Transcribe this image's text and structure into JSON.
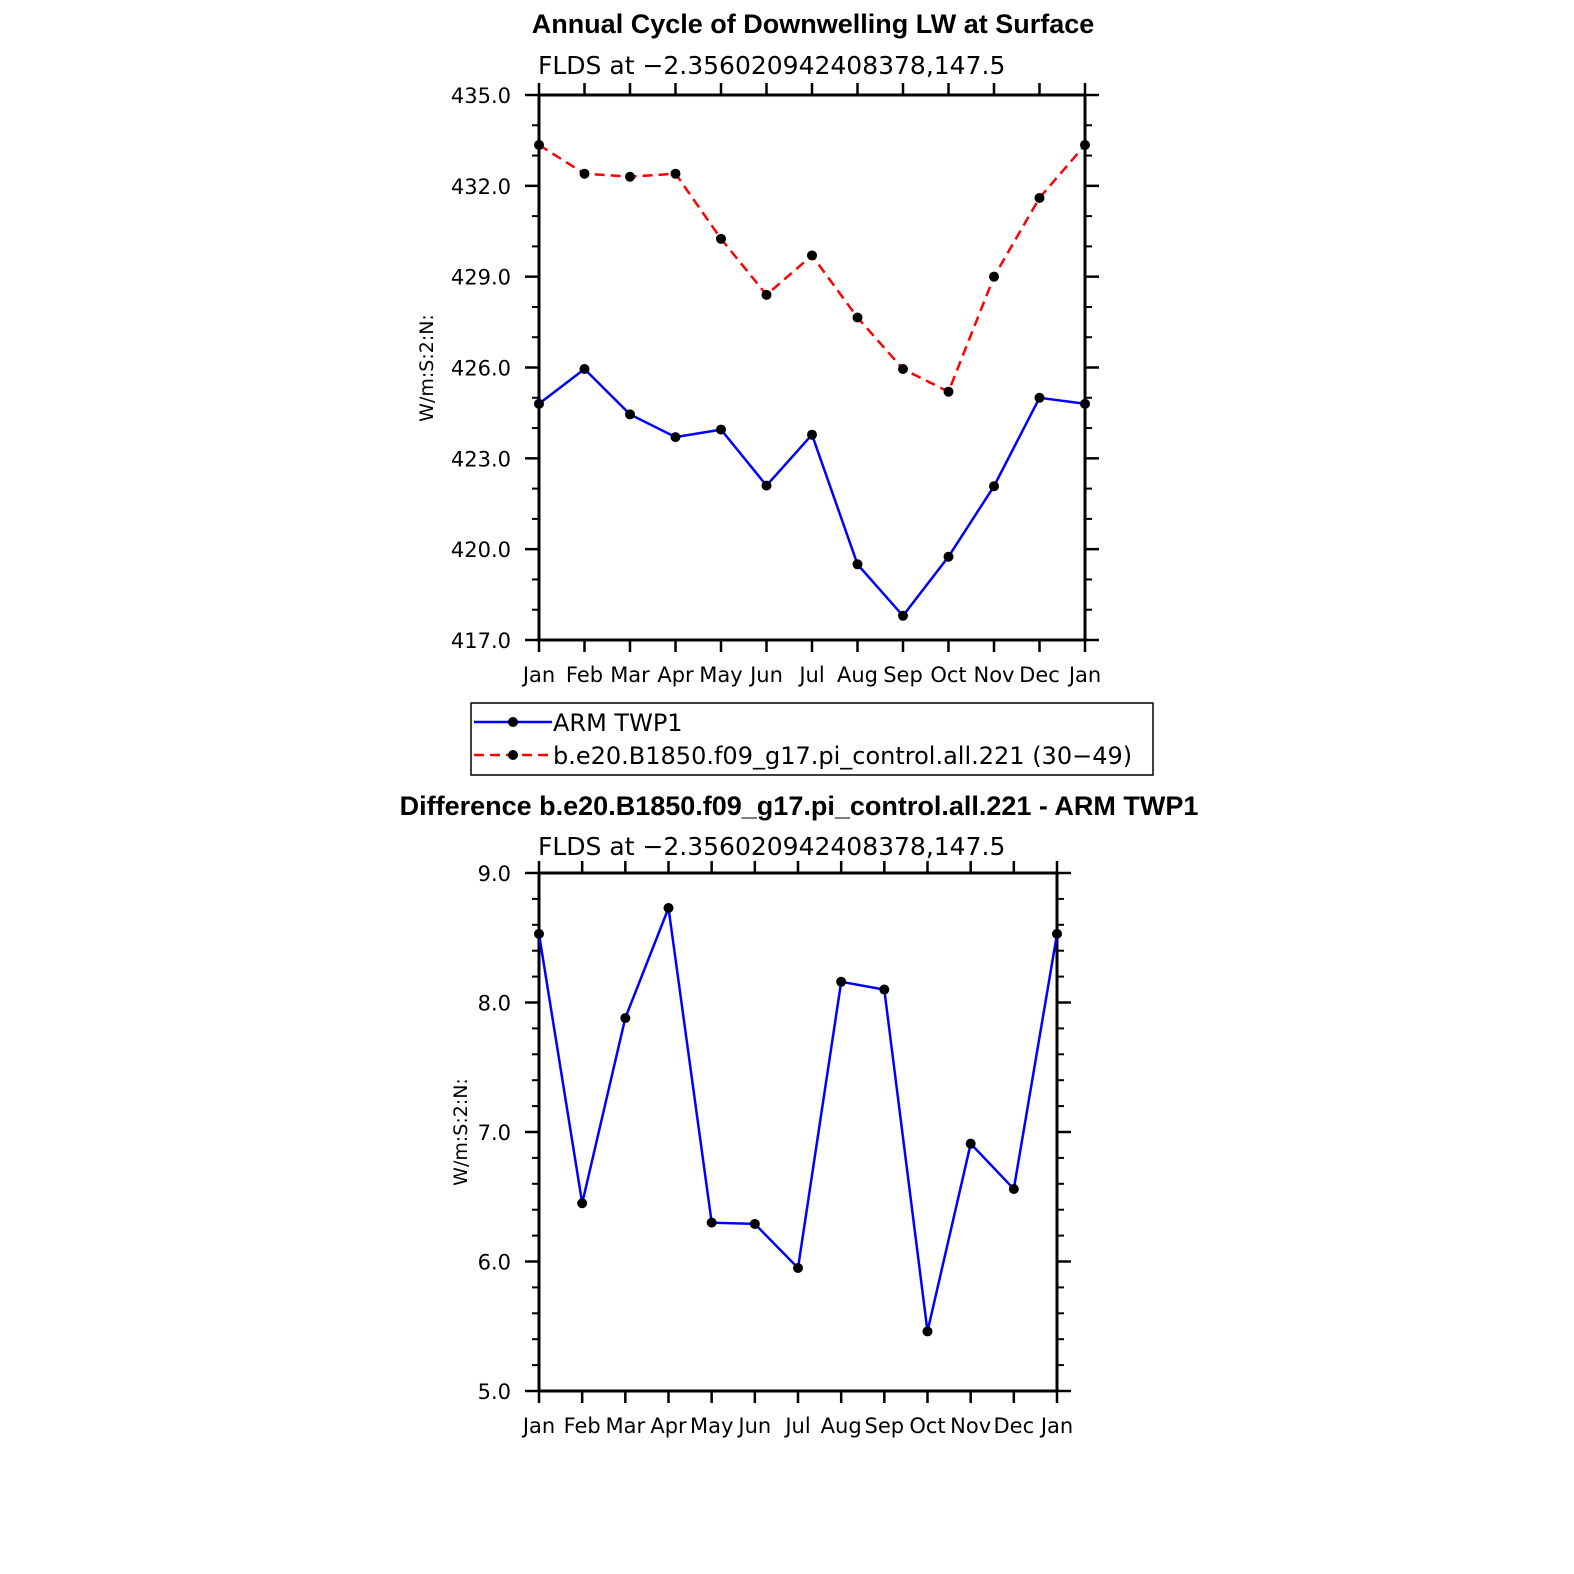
{
  "chart_data": [
    {
      "type": "line",
      "title": "Annual Cycle of Downwelling LW at Surface",
      "subtitle": "FLDS at −2.356020942408378,147.5",
      "ylabel": "W/m:S:2:N:",
      "xlabel": "",
      "categories": [
        "Jan",
        "Feb",
        "Mar",
        "Apr",
        "May",
        "Jun",
        "Jul",
        "Aug",
        "Sep",
        "Oct",
        "Nov",
        "Dec",
        "Jan"
      ],
      "ylim": [
        417.0,
        435.0
      ],
      "yticks": [
        "417.0",
        "420.0",
        "423.0",
        "426.0",
        "429.0",
        "432.0",
        "435.0"
      ],
      "grid": false,
      "legend_position": "below",
      "series": [
        {
          "name": "ARM TWP1",
          "color": "#0000ff",
          "style": "solid",
          "values": [
            424.8,
            425.95,
            424.45,
            423.7,
            423.95,
            422.1,
            423.78,
            419.5,
            417.8,
            419.75,
            422.08,
            425.0,
            424.8
          ]
        },
        {
          "name": "b.e20.B1850.f09_g17.pi_control.all.221 (30−49)",
          "color": "#ff0000",
          "style": "dashed",
          "values": [
            433.35,
            432.4,
            432.3,
            432.4,
            430.25,
            428.4,
            429.7,
            427.65,
            425.95,
            425.2,
            429.0,
            431.6,
            433.35
          ]
        }
      ]
    },
    {
      "type": "line",
      "title": "Difference b.e20.B1850.f09_g17.pi_control.all.221 - ARM TWP1",
      "subtitle": "FLDS at −2.356020942408378,147.5",
      "ylabel": "W/m:S:2:N:",
      "xlabel": "",
      "categories": [
        "Jan",
        "Feb",
        "Mar",
        "Apr",
        "May",
        "Jun",
        "Jul",
        "Aug",
        "Sep",
        "Oct",
        "Nov",
        "Dec",
        "Jan"
      ],
      "ylim": [
        5.0,
        9.0
      ],
      "yticks": [
        "5.0",
        "6.0",
        "7.0",
        "8.0",
        "9.0"
      ],
      "grid": false,
      "series": [
        {
          "color": "#0000ff",
          "style": "solid",
          "values": [
            8.53,
            6.45,
            7.88,
            8.73,
            6.3,
            6.29,
            5.95,
            8.16,
            8.1,
            5.46,
            6.91,
            6.56,
            8.53
          ]
        }
      ]
    }
  ]
}
